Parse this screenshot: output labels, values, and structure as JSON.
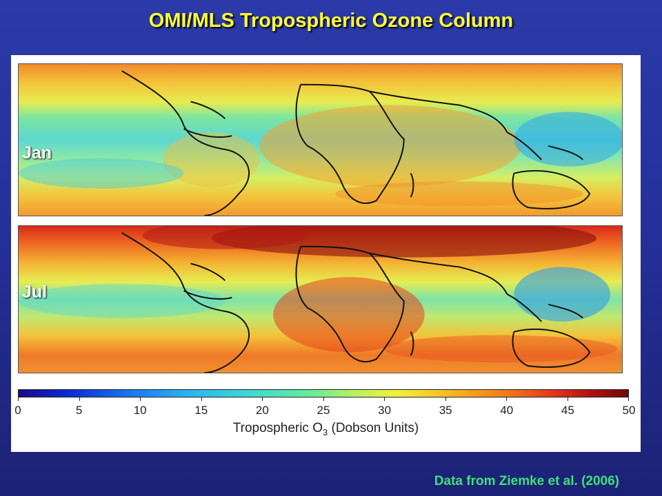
{
  "title": "OMI/MLS Tropospheric Ozone Column",
  "panels": {
    "top_label": "Jan",
    "bottom_label": "Jul"
  },
  "colorbar": {
    "ticks": [
      "0",
      "5",
      "10",
      "15",
      "20",
      "25",
      "30",
      "35",
      "40",
      "45",
      "50"
    ],
    "label_main": "Tropospheric O",
    "label_sub": "3",
    "label_units": " (Dobson Units)",
    "min": 0,
    "max": 50
  },
  "credit": "Data from Ziemke et al. (2006)",
  "colors": {
    "title": "#ffff33",
    "credit": "#3fe07a",
    "background": "#25309a"
  }
}
